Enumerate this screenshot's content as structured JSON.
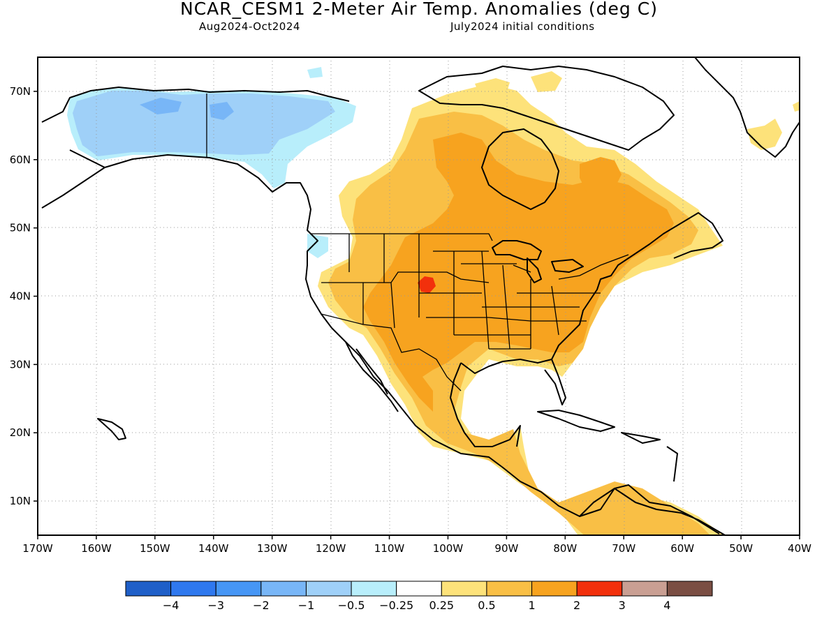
{
  "header": {
    "title": "NCAR_CESM1 2-Meter Air Temp. Anomalies (deg C)",
    "period": "Aug2024-Oct2024",
    "init": "July2024 initial conditions"
  },
  "map": {
    "lon_range": [
      -170,
      -40
    ],
    "lat_range": [
      5,
      75
    ],
    "lon_ticks": [
      -170,
      -160,
      -150,
      -140,
      -130,
      -120,
      -110,
      -100,
      -90,
      -80,
      -70,
      -60,
      -50,
      -40
    ],
    "lat_ticks": [
      10,
      20,
      30,
      40,
      50,
      60,
      70
    ],
    "lon_labels": [
      "170W",
      "160W",
      "150W",
      "140W",
      "130W",
      "120W",
      "110W",
      "100W",
      "90W",
      "80W",
      "70W",
      "60W",
      "50W",
      "40W"
    ],
    "lat_labels": [
      "10N",
      "20N",
      "30N",
      "40N",
      "50N",
      "60N",
      "70N"
    ],
    "grid": "dotted"
  },
  "colorbar": {
    "colors": [
      "#1f5fc8",
      "#2f78ee",
      "#4696f5",
      "#78b6f7",
      "#9fd0f8",
      "#b8eefb",
      "#ffffff",
      "#fde27a",
      "#f9bf45",
      "#f7a31f",
      "#f2300c",
      "#c99f93",
      "#7a4e43"
    ],
    "labels": [
      "−4",
      "−3",
      "−2",
      "−1",
      "−0.5",
      "−0.25",
      "0.25",
      "0.5",
      "1",
      "2",
      "3",
      "4"
    ]
  }
}
